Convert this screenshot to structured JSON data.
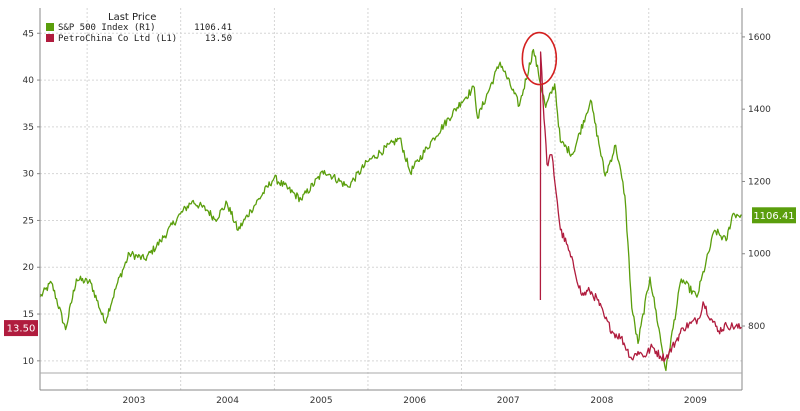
{
  "chart_data": {
    "type": "line",
    "title": "",
    "legend": {
      "title": "Last Price",
      "placement": "top-left",
      "entries": [
        {
          "series": "sp500",
          "label": "S&P 500 Index  (R1)",
          "value": "1106.41"
        },
        {
          "series": "petrochina",
          "label": "PetroChina Co Ltd  (L1)",
          "value": "13.50"
        }
      ]
    },
    "left_axis": {
      "ticks": [
        10,
        15,
        20,
        25,
        30,
        35,
        40,
        45
      ],
      "range": [
        8.7,
        47.7
      ]
    },
    "right_axis": {
      "ticks": [
        800,
        1000,
        1200,
        1400,
        1600
      ],
      "range": [
        670,
        1680
      ]
    },
    "x_axis": {
      "range": [
        "2002-07-01",
        "2009-12-31"
      ],
      "years": [
        "2003",
        "2004",
        "2005",
        "2006",
        "2007",
        "2008",
        "2009"
      ],
      "year_starts": [
        "2003-01-01",
        "2004-01-01",
        "2005-01-01",
        "2006-01-01",
        "2007-01-01",
        "2008-01-01",
        "2009-01-01",
        "2009-12-31"
      ]
    },
    "grid": true,
    "series": [
      {
        "id": "sp500",
        "name": "S&P 500 Index",
        "axis": "right",
        "color": "#5a9e0c",
        "last_value": "1106.41",
        "points": [
          [
            "2002-07-01",
            880
          ],
          [
            "2002-08-15",
            920
          ],
          [
            "2002-10-09",
            790
          ],
          [
            "2002-11-20",
            930
          ],
          [
            "2003-01-15",
            920
          ],
          [
            "2003-03-11",
            810
          ],
          [
            "2003-04-30",
            920
          ],
          [
            "2003-06-15",
            1000
          ],
          [
            "2003-08-15",
            985
          ],
          [
            "2003-10-15",
            1035
          ],
          [
            "2003-12-31",
            1110
          ],
          [
            "2004-02-15",
            1145
          ],
          [
            "2004-04-15",
            1120
          ],
          [
            "2004-05-15",
            1095
          ],
          [
            "2004-06-30",
            1140
          ],
          [
            "2004-08-12",
            1065
          ],
          [
            "2004-10-01",
            1120
          ],
          [
            "2004-12-31",
            1210
          ],
          [
            "2005-04-15",
            1150
          ],
          [
            "2005-07-15",
            1230
          ],
          [
            "2005-10-15",
            1185
          ],
          [
            "2005-12-31",
            1255
          ],
          [
            "2006-05-05",
            1320
          ],
          [
            "2006-06-15",
            1225
          ],
          [
            "2006-09-15",
            1320
          ],
          [
            "2006-12-31",
            1420
          ],
          [
            "2007-02-20",
            1460
          ],
          [
            "2007-03-05",
            1375
          ],
          [
            "2007-06-01",
            1530
          ],
          [
            "2007-08-15",
            1410
          ],
          [
            "2007-10-09",
            1565
          ],
          [
            "2007-11-26",
            1405
          ],
          [
            "2007-12-31",
            1470
          ],
          [
            "2008-01-22",
            1310
          ],
          [
            "2008-03-10",
            1275
          ],
          [
            "2008-05-19",
            1425
          ],
          [
            "2008-07-15",
            1215
          ],
          [
            "2008-08-25",
            1300
          ],
          [
            "2008-09-30",
            1160
          ],
          [
            "2008-10-27",
            850
          ],
          [
            "2008-11-20",
            752
          ],
          [
            "2009-01-06",
            935
          ],
          [
            "2009-03-09",
            677
          ],
          [
            "2009-05-08",
            930
          ],
          [
            "2009-07-08",
            880
          ],
          [
            "2009-09-15",
            1065
          ],
          [
            "2009-10-30",
            1036
          ],
          [
            "2009-11-25",
            1110
          ],
          [
            "2009-12-31",
            1106
          ]
        ]
      },
      {
        "id": "petrochina",
        "name": "PetroChina Co Ltd",
        "axis": "left",
        "color": "#b01c3e",
        "last_value": "13.50",
        "points": [
          [
            "2007-11-05",
            16.5
          ],
          [
            "2007-11-06",
            43.0
          ],
          [
            "2007-11-15",
            38.0
          ],
          [
            "2007-12-01",
            31.0
          ],
          [
            "2007-12-20",
            32.0
          ],
          [
            "2008-01-10",
            27.0
          ],
          [
            "2008-01-22",
            24.0
          ],
          [
            "2008-02-15",
            22.5
          ],
          [
            "2008-03-15",
            20.0
          ],
          [
            "2008-04-15",
            17.0
          ],
          [
            "2008-05-15",
            17.5
          ],
          [
            "2008-06-15",
            16.5
          ],
          [
            "2008-07-15",
            14.5
          ],
          [
            "2008-08-15",
            13.0
          ],
          [
            "2008-09-15",
            12.5
          ],
          [
            "2008-10-27",
            10.2
          ],
          [
            "2008-11-20",
            11.0
          ],
          [
            "2008-12-15",
            10.5
          ],
          [
            "2009-01-15",
            11.5
          ],
          [
            "2009-02-15",
            10.5
          ],
          [
            "2009-03-09",
            10.3
          ],
          [
            "2009-04-15",
            12.0
          ],
          [
            "2009-05-15",
            13.5
          ],
          [
            "2009-06-15",
            14.0
          ],
          [
            "2009-07-15",
            14.5
          ],
          [
            "2009-08-01",
            16.3
          ],
          [
            "2009-09-01",
            14.5
          ],
          [
            "2009-10-01",
            13.2
          ],
          [
            "2009-11-01",
            13.8
          ],
          [
            "2009-12-31",
            13.5
          ]
        ]
      }
    ],
    "annotations": [
      {
        "type": "circle",
        "x": "2007-11-01",
        "axis": "right",
        "y": 1540
      }
    ]
  },
  "colors": {
    "sp500": "#5a9e0c",
    "petrochina": "#b01c3e",
    "annotation": "#d42020",
    "grid": "#d6d6d6"
  }
}
